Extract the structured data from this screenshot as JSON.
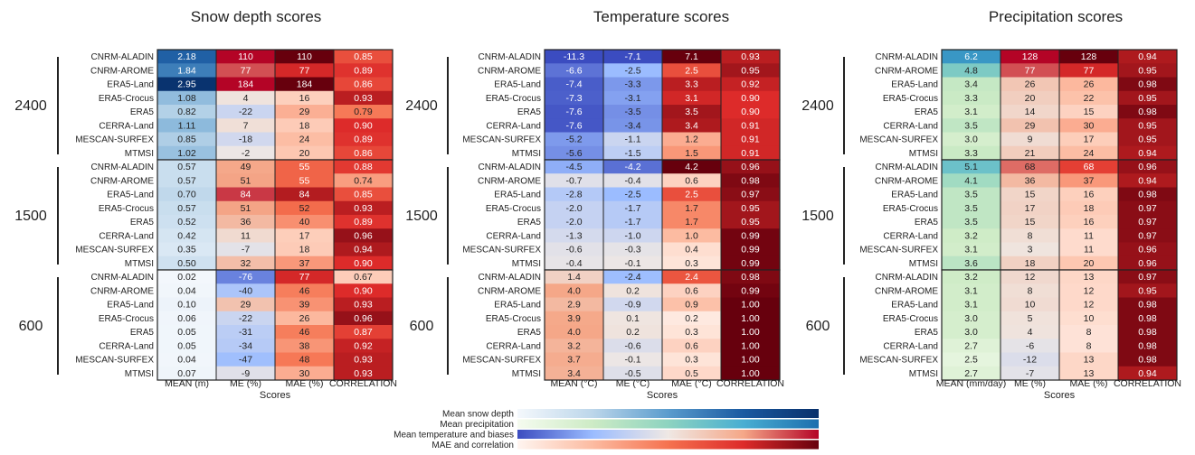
{
  "chart_data": [
    {
      "type": "heatmap",
      "title": "Snow depth scores",
      "xlabel": "Scores",
      "columns": [
        "MEAN (m)",
        "ME (%)",
        "MAE (%)",
        "CORRELATION"
      ],
      "column_scales": [
        "snow",
        "bias",
        "mae",
        "mae"
      ],
      "groups": [
        {
          "label": "2400",
          "rows": [
            "CNRM-ALADIN",
            "CNRM-AROME",
            "ERA5-Land",
            "ERA5-Crocus",
            "ERA5",
            "CERRA-Land",
            "MESCAN-SURFEX",
            "MTMSI"
          ],
          "values": [
            [
              "2.18",
              "110",
              "110",
              "0.85"
            ],
            [
              "1.84",
              "77",
              "77",
              "0.89"
            ],
            [
              "2.95",
              "184",
              "184",
              "0.86"
            ],
            [
              "1.08",
              "4",
              "16",
              "0.93"
            ],
            [
              "0.82",
              "-22",
              "29",
              "0.79"
            ],
            [
              "1.11",
              "7",
              "18",
              "0.90"
            ],
            [
              "0.85",
              "-18",
              "24",
              "0.89"
            ],
            [
              "1.02",
              "-2",
              "20",
              "0.86"
            ]
          ]
        },
        {
          "label": "1500",
          "rows": [
            "CNRM-ALADIN",
            "CNRM-AROME",
            "ERA5-Land",
            "ERA5-Crocus",
            "ERA5",
            "CERRA-Land",
            "MESCAN-SURFEX",
            "MTMSI"
          ],
          "values": [
            [
              "0.57",
              "49",
              "55",
              "0.88"
            ],
            [
              "0.57",
              "51",
              "55",
              "0.74"
            ],
            [
              "0.70",
              "84",
              "84",
              "0.85"
            ],
            [
              "0.57",
              "51",
              "52",
              "0.93"
            ],
            [
              "0.52",
              "36",
              "40",
              "0.89"
            ],
            [
              "0.42",
              "11",
              "17",
              "0.96"
            ],
            [
              "0.35",
              "-7",
              "18",
              "0.94"
            ],
            [
              "0.50",
              "32",
              "37",
              "0.90"
            ]
          ]
        },
        {
          "label": "600",
          "rows": [
            "CNRM-ALADIN",
            "CNRM-AROME",
            "ERA5-Land",
            "ERA5-Crocus",
            "ERA5",
            "CERRA-Land",
            "MESCAN-SURFEX",
            "MTMSI"
          ],
          "values": [
            [
              "0.02",
              "-76",
              "77",
              "0.67"
            ],
            [
              "0.04",
              "-40",
              "46",
              "0.90"
            ],
            [
              "0.10",
              "29",
              "39",
              "0.93"
            ],
            [
              "0.06",
              "-22",
              "26",
              "0.96"
            ],
            [
              "0.05",
              "-31",
              "46",
              "0.87"
            ],
            [
              "0.05",
              "-34",
              "38",
              "0.92"
            ],
            [
              "0.04",
              "-47",
              "48",
              "0.93"
            ],
            [
              "0.07",
              "-9",
              "30",
              "0.93"
            ]
          ]
        }
      ]
    },
    {
      "type": "heatmap",
      "title": "Temperature scores",
      "xlabel": "Scores",
      "columns": [
        "MEAN (°C)",
        "ME (°C)",
        "MAE (°C)",
        "CORRELATION"
      ],
      "column_scales": [
        "temp",
        "tbias",
        "tmae",
        "mae"
      ],
      "groups": [
        {
          "label": "2400",
          "rows": [
            "CNRM-ALADIN",
            "CNRM-AROME",
            "ERA5-Land",
            "ERA5-Crocus",
            "ERA5",
            "CERRA-Land",
            "MESCAN-SURFEX",
            "MTMSI"
          ],
          "values": [
            [
              "-11.3",
              "-7.1",
              "7.1",
              "0.93"
            ],
            [
              "-6.6",
              "-2.5",
              "2.5",
              "0.95"
            ],
            [
              "-7.4",
              "-3.3",
              "3.3",
              "0.92"
            ],
            [
              "-7.3",
              "-3.1",
              "3.1",
              "0.90"
            ],
            [
              "-7.6",
              "-3.5",
              "3.5",
              "0.90"
            ],
            [
              "-7.6",
              "-3.4",
              "3.4",
              "0.91"
            ],
            [
              "-5.2",
              "-1.1",
              "1.2",
              "0.91"
            ],
            [
              "-5.6",
              "-1.5",
              "1.5",
              "0.91"
            ]
          ]
        },
        {
          "label": "1500",
          "rows": [
            "CNRM-ALADIN",
            "CNRM-AROME",
            "ERA5-Land",
            "ERA5-Crocus",
            "ERA5",
            "CERRA-Land",
            "MESCAN-SURFEX",
            "MTMSI"
          ],
          "values": [
            [
              "-4.5",
              "-4.2",
              "4.2",
              "0.96"
            ],
            [
              "-0.7",
              "-0.4",
              "0.6",
              "0.98"
            ],
            [
              "-2.8",
              "-2.5",
              "2.5",
              "0.97"
            ],
            [
              "-2.0",
              "-1.7",
              "1.7",
              "0.95"
            ],
            [
              "-2.0",
              "-1.7",
              "1.7",
              "0.95"
            ],
            [
              "-1.3",
              "-1.0",
              "1.0",
              "0.99"
            ],
            [
              "-0.6",
              "-0.3",
              "0.4",
              "0.99"
            ],
            [
              "-0.4",
              "-0.1",
              "0.3",
              "0.99"
            ]
          ]
        },
        {
          "label": "600",
          "rows": [
            "CNRM-ALADIN",
            "CNRM-AROME",
            "ERA5-Land",
            "ERA5-Crocus",
            "ERA5",
            "CERRA-Land",
            "MESCAN-SURFEX",
            "MTMSI"
          ],
          "values": [
            [
              "1.4",
              "-2.4",
              "2.4",
              "0.98"
            ],
            [
              "4.0",
              "0.2",
              "0.6",
              "0.99"
            ],
            [
              "2.9",
              "-0.9",
              "0.9",
              "1.00"
            ],
            [
              "3.9",
              "0.1",
              "0.2",
              "1.00"
            ],
            [
              "4.0",
              "0.2",
              "0.3",
              "1.00"
            ],
            [
              "3.2",
              "-0.6",
              "0.6",
              "1.00"
            ],
            [
              "3.7",
              "-0.1",
              "0.3",
              "1.00"
            ],
            [
              "3.4",
              "-0.5",
              "0.5",
              "1.00"
            ]
          ]
        }
      ]
    },
    {
      "type": "heatmap",
      "title": "Precipitation scores",
      "xlabel": "Scores",
      "columns": [
        "MEAN (mm/day)",
        "ME (%)",
        "MAE (%)",
        "CORRELATION"
      ],
      "column_scales": [
        "precip",
        "bias",
        "mae",
        "mae"
      ],
      "groups": [
        {
          "label": "2400",
          "rows": [
            "CNRM-ALADIN",
            "CNRM-AROME",
            "ERA5-Land",
            "ERA5-Crocus",
            "ERA5",
            "CERRA-Land",
            "MESCAN-SURFEX",
            "MTMSI"
          ],
          "values": [
            [
              "6.2",
              "128",
              "128",
              "0.94"
            ],
            [
              "4.8",
              "77",
              "77",
              "0.95"
            ],
            [
              "3.4",
              "26",
              "26",
              "0.98"
            ],
            [
              "3.3",
              "20",
              "22",
              "0.95"
            ],
            [
              "3.1",
              "14",
              "15",
              "0.98"
            ],
            [
              "3.5",
              "29",
              "30",
              "0.95"
            ],
            [
              "3.0",
              "9",
              "17",
              "0.95"
            ],
            [
              "3.3",
              "21",
              "24",
              "0.94"
            ]
          ]
        },
        {
          "label": "1500",
          "rows": [
            "CNRM-ALADIN",
            "CNRM-AROME",
            "ERA5-Land",
            "ERA5-Crocus",
            "ERA5",
            "CERRA-Land",
            "MESCAN-SURFEX",
            "MTMSI"
          ],
          "values": [
            [
              "5.1",
              "68",
              "68",
              "0.96"
            ],
            [
              "4.1",
              "36",
              "37",
              "0.94"
            ],
            [
              "3.5",
              "15",
              "16",
              "0.98"
            ],
            [
              "3.5",
              "17",
              "18",
              "0.97"
            ],
            [
              "3.5",
              "15",
              "16",
              "0.97"
            ],
            [
              "3.2",
              "8",
              "11",
              "0.97"
            ],
            [
              "3.1",
              "3",
              "11",
              "0.96"
            ],
            [
              "3.6",
              "18",
              "20",
              "0.96"
            ]
          ]
        },
        {
          "label": "600",
          "rows": [
            "CNRM-ALADIN",
            "CNRM-AROME",
            "ERA5-Land",
            "ERA5-Crocus",
            "ERA5",
            "CERRA-Land",
            "MESCAN-SURFEX",
            "MTMSI"
          ],
          "values": [
            [
              "3.2",
              "12",
              "13",
              "0.97"
            ],
            [
              "3.1",
              "8",
              "12",
              "0.95"
            ],
            [
              "3.1",
              "10",
              "12",
              "0.98"
            ],
            [
              "3.0",
              "5",
              "10",
              "0.98"
            ],
            [
              "3.0",
              "4",
              "8",
              "0.98"
            ],
            [
              "2.7",
              "-6",
              "8",
              "0.98"
            ],
            [
              "2.5",
              "-12",
              "13",
              "0.98"
            ],
            [
              "2.7",
              "-7",
              "13",
              "0.94"
            ]
          ]
        }
      ]
    }
  ],
  "colorbars": [
    {
      "label": "Mean snow depth",
      "colors": [
        "#f4f8fc",
        "#bcd6ea",
        "#5a9ccd",
        "#1a5aa1",
        "#08306b"
      ]
    },
    {
      "label": "Mean precipitation",
      "colors": [
        "#f5fbef",
        "#cdebc5",
        "#8dd3c0",
        "#49aed2",
        "#1d6eae"
      ]
    },
    {
      "label": "Mean temperature and biases",
      "colors": [
        "#3b4cc0",
        "#9bbcff",
        "#efe8e4",
        "#f5a788",
        "#b40426"
      ]
    },
    {
      "label": "MAE and correlation",
      "colors": [
        "#fff5f0",
        "#fcbba1",
        "#f5724f",
        "#dd2b2a",
        "#67000d"
      ]
    }
  ],
  "scales": {
    "snow": [
      0,
      3
    ],
    "precip": [
      2,
      7
    ],
    "bias": [
      -100,
      100
    ],
    "mae": [
      0,
      100
    ],
    "temp": [
      -8,
      8
    ],
    "tbias": [
      -5,
      5
    ],
    "tmae": [
      0,
      4
    ]
  }
}
